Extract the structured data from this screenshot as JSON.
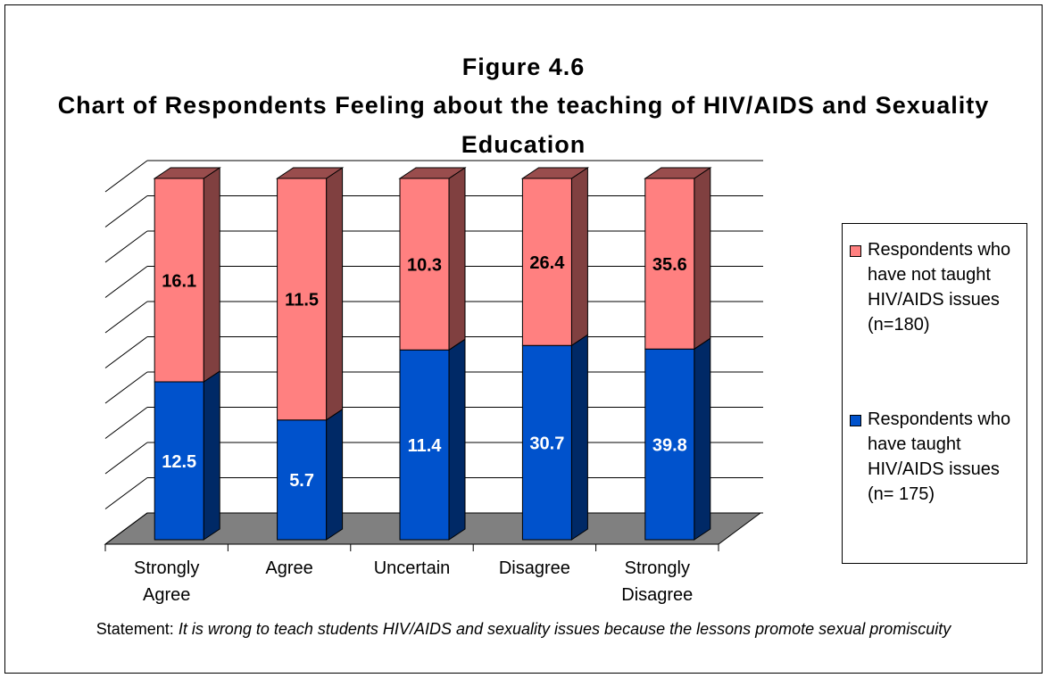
{
  "chart_data": {
    "type": "bar",
    "stacking": "percent",
    "title": "Figure 4.6",
    "subtitle": "Chart of Respondents Feeling about the teaching of HIV/AIDS and Sexuality Education",
    "categories": [
      "Strongly Agree",
      "Agree",
      "Uncertain",
      "Disagree",
      "Strongly Disagree"
    ],
    "series": [
      {
        "name": "Respondents who have taught HIV/AIDS issues (n= 175)",
        "color": "#0052cc",
        "label_color": "#ffffff",
        "values": [
          12.5,
          5.7,
          11.4,
          30.7,
          39.8
        ]
      },
      {
        "name": "Respondents who have not taught HIV/AIDS issues (n=180)",
        "color": "#ff8080",
        "label_color": "#000000",
        "values": [
          16.1,
          11.5,
          10.3,
          26.4,
          35.6
        ]
      }
    ],
    "ylim": [
      0,
      100
    ],
    "yticks": [
      0,
      10,
      20,
      30,
      40,
      50,
      60,
      70,
      80,
      90,
      100
    ],
    "show_tick_labels": false,
    "grid": true,
    "legend": "right",
    "statement_label": "Statement:",
    "statement": "It is wrong to teach students HIV/AIDS and sexuality issues because the lessons promote sexual promiscuity"
  }
}
